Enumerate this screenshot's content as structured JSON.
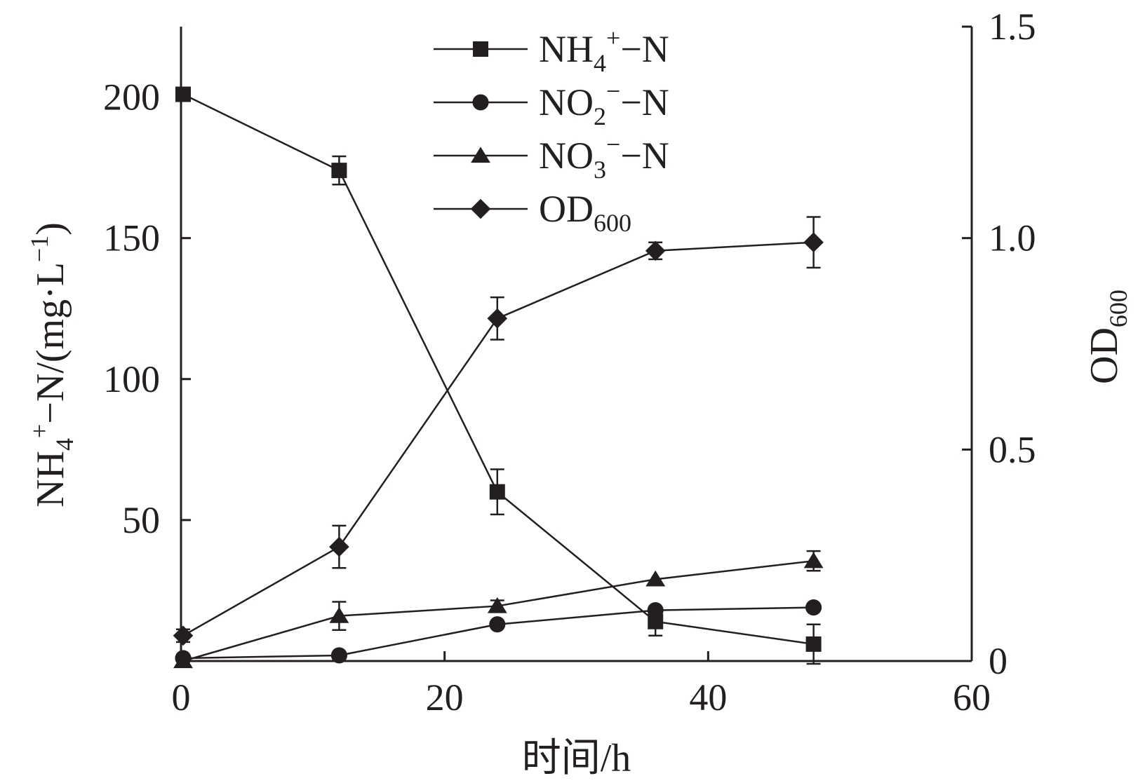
{
  "chart_data": {
    "type": "line",
    "x": [
      0,
      12,
      24,
      36,
      48
    ],
    "xlim": [
      0,
      60
    ],
    "xticks": [
      "0",
      "20",
      "40",
      "60"
    ],
    "xlabel": "时间/h",
    "ylim": [
      0,
      225
    ],
    "yticks": [
      "50",
      "100",
      "150",
      "200"
    ],
    "ylabel": {
      "base": "NH",
      "sub": "4",
      "sup": "+",
      "rest": "−N/(mg·L",
      "sup2": "−1",
      "close": ")"
    },
    "y2lim": [
      0,
      1.5
    ],
    "y2ticks": [
      "0",
      "0.5",
      "1.0",
      "1.5"
    ],
    "y2label": {
      "base": "OD",
      "sub": "600"
    },
    "series": [
      {
        "name": "NH4+-N",
        "label": {
          "base": "NH",
          "sub": "4",
          "sup": "+",
          "rest": "−N"
        },
        "marker": "square",
        "axis": "left",
        "values": [
          201,
          174,
          60,
          14,
          6
        ],
        "errors": [
          0,
          5,
          8,
          5,
          7
        ]
      },
      {
        "name": "NO2--N",
        "label": {
          "base": "NO",
          "sub": "2",
          "sup": "−",
          "rest": "−N"
        },
        "marker": "circle",
        "axis": "left",
        "values": [
          1,
          2,
          13,
          18,
          19
        ],
        "errors": [
          0,
          0,
          0,
          0,
          0
        ]
      },
      {
        "name": "NO3--N",
        "label": {
          "base": "NO",
          "sub": "3",
          "sup": "−",
          "rest": "−N"
        },
        "marker": "triangle",
        "axis": "left",
        "values": [
          0,
          16,
          19.5,
          29,
          35.5
        ],
        "errors": [
          0,
          5,
          2,
          0,
          3.5
        ]
      },
      {
        "name": "OD600",
        "label": {
          "base": "OD",
          "sub": "600",
          "sup": "",
          "rest": ""
        },
        "marker": "diamond",
        "axis": "right",
        "values": [
          0.06,
          0.27,
          0.81,
          0.97,
          0.99
        ],
        "errors": [
          0.015,
          0.05,
          0.05,
          0.02,
          0.06
        ]
      }
    ],
    "legend": "top-center",
    "grid": false,
    "color": "#231f20"
  }
}
